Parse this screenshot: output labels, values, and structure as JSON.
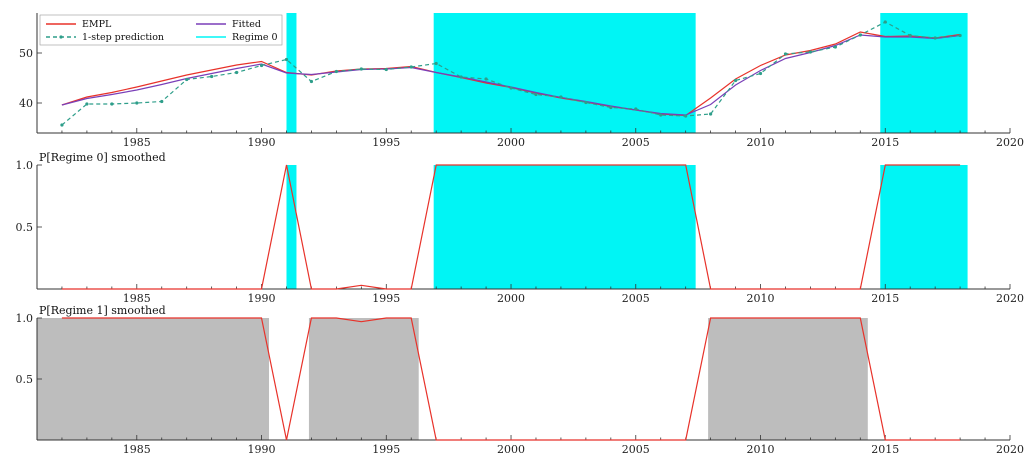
{
  "chart_data": [
    {
      "type": "line",
      "title": "",
      "xlabel": "",
      "ylabel": "",
      "xlim": [
        1981,
        2020
      ],
      "ylim": [
        34,
        58
      ],
      "x_ticks": [
        1985,
        1990,
        1995,
        2000,
        2005,
        2010,
        2015,
        2020
      ],
      "y_ticks": [
        40,
        50
      ],
      "grid": false,
      "legend": "top-left",
      "regimes": [
        {
          "name": "Regime 0",
          "color": "#00f5f5",
          "spans": [
            [
              1991.0,
              1991.4
            ],
            [
              1996.9,
              2007.4
            ],
            [
              2014.8,
              2018.3
            ]
          ]
        }
      ],
      "series": [
        {
          "name": "EMPL",
          "color": "#e8322a",
          "style": "solid",
          "x": [
            1982,
            1983,
            1984,
            1985,
            1986,
            1987,
            1988,
            1989,
            1990,
            1991,
            1992,
            1993,
            1994,
            1995,
            1996,
            1997,
            1998,
            1999,
            2000,
            2001,
            2002,
            2003,
            2004,
            2005,
            2006,
            2007,
            2008,
            2009,
            2010,
            2011,
            2012,
            2013,
            2014,
            2015,
            2016,
            2017,
            2018
          ],
          "values": [
            39.6,
            41.2,
            42.1,
            43.2,
            44.4,
            45.6,
            46.6,
            47.6,
            48.3,
            46.1,
            45.6,
            46.4,
            46.8,
            46.9,
            47.3,
            46.1,
            45.1,
            44.0,
            43.1,
            42.0,
            41.0,
            40.2,
            39.3,
            38.6,
            37.8,
            37.5,
            41.0,
            44.8,
            47.5,
            49.6,
            50.5,
            51.8,
            54.2,
            53.3,
            53.4,
            53.0,
            53.7
          ]
        },
        {
          "name": "Fitted",
          "color": "#7a3fb8",
          "style": "solid",
          "x": [
            1982,
            1983,
            1984,
            1985,
            1986,
            1987,
            1988,
            1989,
            1990,
            1991,
            1992,
            1993,
            1994,
            1995,
            1996,
            1997,
            1998,
            1999,
            2000,
            2001,
            2002,
            2003,
            2004,
            2005,
            2006,
            2007,
            2008,
            2009,
            2010,
            2011,
            2012,
            2013,
            2014,
            2015,
            2016,
            2017,
            2018
          ],
          "values": [
            39.6,
            40.9,
            41.7,
            42.6,
            43.7,
            44.9,
            45.9,
            46.9,
            47.8,
            46.0,
            45.7,
            46.2,
            46.7,
            46.8,
            47.1,
            46.1,
            45.2,
            44.2,
            43.2,
            42.1,
            41.1,
            40.3,
            39.4,
            38.6,
            37.9,
            37.6,
            39.7,
            43.6,
            46.5,
            48.9,
            50.1,
            51.5,
            53.6,
            53.2,
            53.2,
            52.9,
            53.5
          ]
        },
        {
          "name": "1-step prediction",
          "color": "#2e9e8a",
          "style": "dashed",
          "x": [
            1982,
            1983,
            1984,
            1985,
            1986,
            1987,
            1988,
            1989,
            1990,
            1991,
            1992,
            1993,
            1994,
            1995,
            1996,
            1997,
            1998,
            1999,
            2000,
            2001,
            2002,
            2003,
            2004,
            2005,
            2006,
            2007,
            2008,
            2009,
            2010,
            2011,
            2012,
            2013,
            2014,
            2015,
            2016,
            2017,
            2018
          ],
          "values": [
            35.6,
            39.8,
            39.8,
            40.0,
            40.3,
            44.7,
            45.3,
            46.1,
            47.5,
            48.7,
            44.3,
            46.3,
            46.8,
            46.7,
            47.2,
            47.9,
            45.2,
            44.8,
            43.0,
            41.7,
            41.2,
            40.1,
            39.1,
            38.8,
            37.6,
            37.4,
            37.8,
            44.5,
            45.9,
            49.8,
            50.2,
            51.2,
            53.6,
            56.2,
            53.5,
            53.0,
            53.5
          ]
        }
      ]
    },
    {
      "type": "line",
      "title": "P[Regime 0] smoothed",
      "xlim": [
        1981,
        2020
      ],
      "ylim": [
        0,
        1.0
      ],
      "x_ticks": [
        1985,
        1990,
        1995,
        2000,
        2005,
        2010,
        2015,
        2020
      ],
      "y_ticks": [
        0.5,
        1.0
      ],
      "y_tick_labels": [
        "0.5",
        "1.0"
      ],
      "grid": false,
      "shade_color": "#00f5f5",
      "spans": [
        [
          1991.0,
          1991.4
        ],
        [
          1996.9,
          2007.4
        ],
        [
          2014.8,
          2018.3
        ]
      ],
      "series": [
        {
          "name": "",
          "color": "#e8322a",
          "x": [
            1982,
            1983,
            1984,
            1985,
            1986,
            1987,
            1988,
            1989,
            1990,
            1991,
            1992,
            1993,
            1994,
            1995,
            1996,
            1997,
            1998,
            1999,
            2000,
            2001,
            2002,
            2003,
            2004,
            2005,
            2006,
            2007,
            2008,
            2009,
            2010,
            2011,
            2012,
            2013,
            2014,
            2015,
            2016,
            2017,
            2018
          ],
          "values": [
            0,
            0,
            0,
            0,
            0,
            0,
            0,
            0,
            0,
            1.0,
            0,
            0,
            0.03,
            0,
            0,
            1.0,
            1.0,
            1.0,
            1.0,
            1.0,
            1.0,
            1.0,
            1.0,
            1.0,
            1.0,
            1.0,
            0,
            0,
            0,
            0,
            0,
            0,
            0,
            1.0,
            1.0,
            1.0,
            1.0
          ]
        }
      ]
    },
    {
      "type": "line",
      "title": "P[Regime 1] smoothed",
      "xlim": [
        1981,
        2020
      ],
      "ylim": [
        0,
        1.0
      ],
      "x_ticks": [
        1985,
        1990,
        1995,
        2000,
        2005,
        2010,
        2015,
        2020
      ],
      "y_ticks": [
        0.5,
        1.0
      ],
      "y_tick_labels": [
        "0.5",
        "1.0"
      ],
      "grid": false,
      "shade_color": "#bdbdbd",
      "spans": [
        [
          1981.0,
          1990.3
        ],
        [
          1991.9,
          1996.3
        ],
        [
          2007.9,
          2014.3
        ]
      ],
      "series": [
        {
          "name": "",
          "color": "#e8322a",
          "x": [
            1982,
            1983,
            1984,
            1985,
            1986,
            1987,
            1988,
            1989,
            1990,
            1991,
            1992,
            1993,
            1994,
            1995,
            1996,
            1997,
            1998,
            1999,
            2000,
            2001,
            2002,
            2003,
            2004,
            2005,
            2006,
            2007,
            2008,
            2009,
            2010,
            2011,
            2012,
            2013,
            2014,
            2015,
            2016,
            2017,
            2018
          ],
          "values": [
            1.0,
            1.0,
            1.0,
            1.0,
            1.0,
            1.0,
            1.0,
            1.0,
            1.0,
            0,
            1.0,
            1.0,
            0.97,
            1.0,
            1.0,
            0,
            0,
            0,
            0,
            0,
            0,
            0,
            0,
            0,
            0,
            0,
            1.0,
            1.0,
            1.0,
            1.0,
            1.0,
            1.0,
            1.0,
            0,
            0,
            0,
            0
          ]
        }
      ]
    }
  ]
}
